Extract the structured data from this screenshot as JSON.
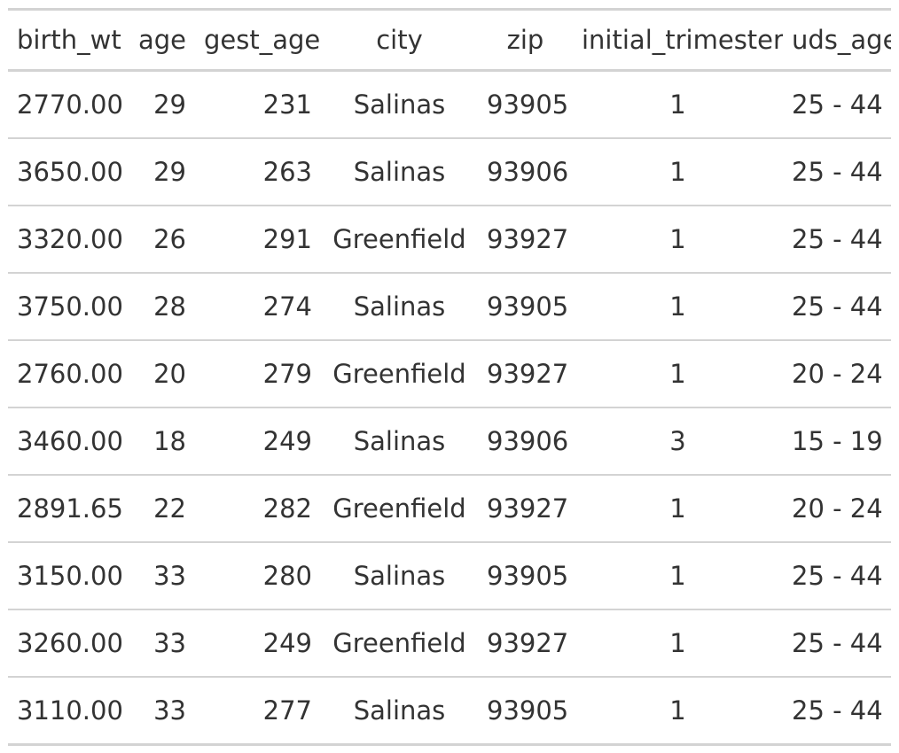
{
  "table": {
    "columns": [
      "birth_wt",
      "age",
      "gest_age",
      "city",
      "zip",
      "initial_trimester",
      "uds_age"
    ],
    "rows": [
      [
        "2770.00",
        "29",
        "231",
        "Salinas",
        "93905",
        "1",
        "25 - 44"
      ],
      [
        "3650.00",
        "29",
        "263",
        "Salinas",
        "93906",
        "1",
        "25 - 44"
      ],
      [
        "3320.00",
        "26",
        "291",
        "Greenfield",
        "93927",
        "1",
        "25 - 44"
      ],
      [
        "3750.00",
        "28",
        "274",
        "Salinas",
        "93905",
        "1",
        "25 - 44"
      ],
      [
        "2760.00",
        "20",
        "279",
        "Greenfield",
        "93927",
        "1",
        "20 - 24"
      ],
      [
        "3460.00",
        "18",
        "249",
        "Salinas",
        "93906",
        "3",
        "15 - 19"
      ],
      [
        "2891.65",
        "22",
        "282",
        "Greenfield",
        "93927",
        "1",
        "20 - 24"
      ],
      [
        "3150.00",
        "33",
        "280",
        "Salinas",
        "93905",
        "1",
        "25 - 44"
      ],
      [
        "3260.00",
        "33",
        "249",
        "Greenfield",
        "93927",
        "1",
        "25 - 44"
      ],
      [
        "3110.00",
        "33",
        "277",
        "Salinas",
        "93905",
        "1",
        "25 - 44"
      ]
    ]
  }
}
